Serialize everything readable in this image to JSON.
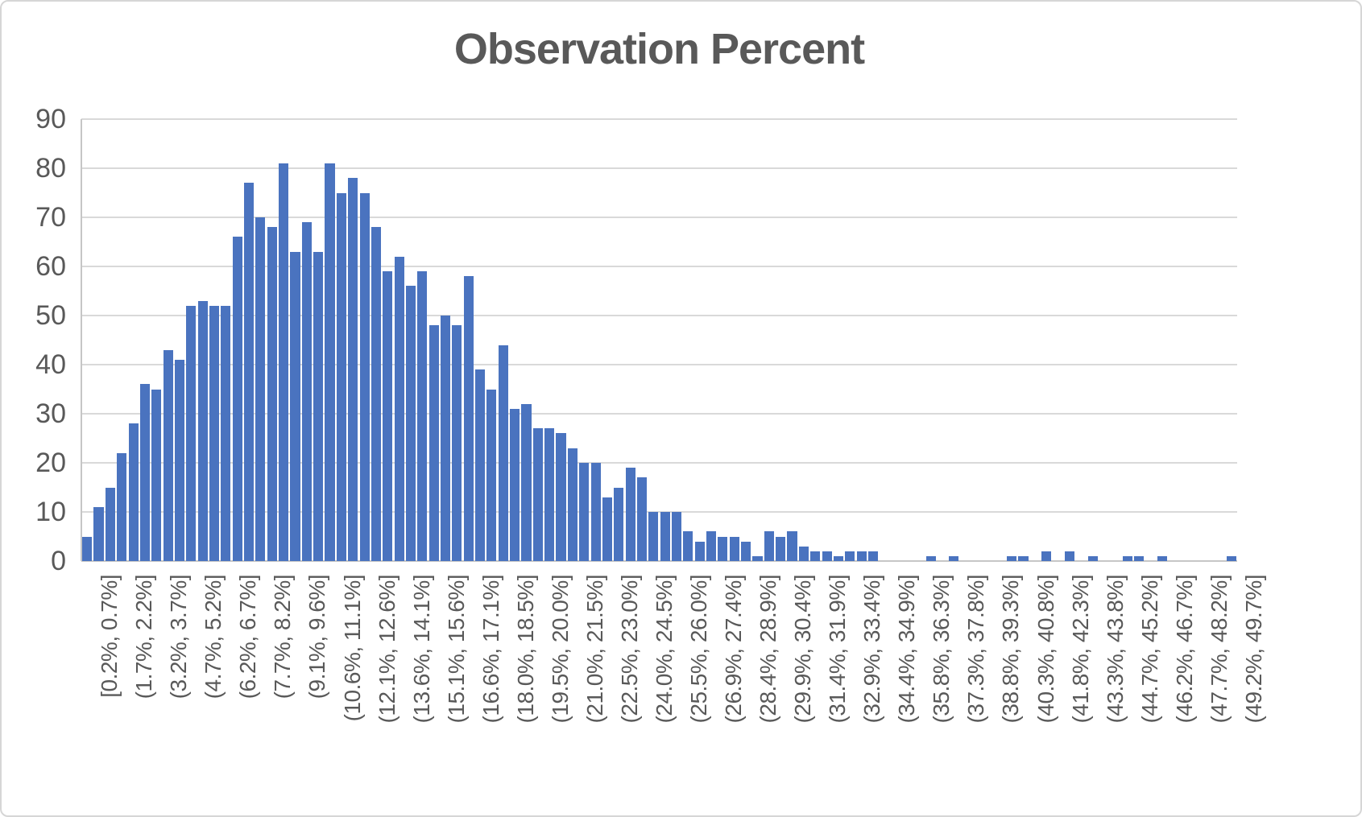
{
  "title": "Observation Percent",
  "colors": {
    "bar": "#4a73bf",
    "gridline": "#d9d9d9",
    "axis_line": "#c6c6c6",
    "text": "#595959",
    "background": "#ffffff"
  },
  "chart_data": {
    "type": "bar",
    "title": "Observation Percent",
    "xlabel": "",
    "ylabel": "",
    "ylim": [
      0,
      90
    ],
    "y_ticks": [
      0,
      10,
      20,
      30,
      40,
      50,
      60,
      70,
      80,
      90
    ],
    "grid": "horizontal",
    "legend": "none",
    "bar_count": 100,
    "x_tick_label_every_n_bars": 3,
    "x_tick_labels": [
      "[0.2%, 0.7%]",
      "(1.7%, 2.2%]",
      "(3.2%, 3.7%]",
      "(4.7%, 5.2%]",
      "(6.2%, 6.7%]",
      "(7.7%, 8.2%]",
      "(9.1%, 9.6%]",
      "(10.6%, 11.1%]",
      "(12.1%, 12.6%]",
      "(13.6%, 14.1%]",
      "(15.1%, 15.6%]",
      "(16.6%, 17.1%]",
      "(18.0%, 18.5%]",
      "(19.5%, 20.0%]",
      "(21.0%, 21.5%]",
      "(22.5%, 23.0%]",
      "(24.0%, 24.5%]",
      "(25.5%, 26.0%]",
      "(26.9%, 27.4%]",
      "(28.4%, 28.9%]",
      "(29.9%, 30.4%]",
      "(31.4%, 31.9%]",
      "(32.9%, 33.4%]",
      "(34.4%, 34.9%]",
      "(35.8%, 36.3%]",
      "(37.3%, 37.8%]",
      "(38.8%, 39.3%]",
      "(40.3%, 40.8%]",
      "(41.8%, 42.3%]",
      "(43.3%, 43.8%]",
      "(44.7%, 45.2%]",
      "(46.2%, 46.7%]",
      "(47.7%, 48.2%]",
      "(49.2%, 49.7%]"
    ],
    "values": [
      5,
      11,
      15,
      22,
      28,
      36,
      35,
      43,
      41,
      52,
      53,
      52,
      52,
      66,
      77,
      70,
      68,
      81,
      63,
      69,
      63,
      81,
      75,
      78,
      75,
      68,
      59,
      62,
      56,
      59,
      48,
      50,
      48,
      58,
      39,
      35,
      44,
      31,
      32,
      27,
      27,
      26,
      23,
      20,
      20,
      13,
      15,
      19,
      17,
      10,
      10,
      10,
      6,
      4,
      6,
      5,
      5,
      4,
      1,
      6,
      5,
      6,
      3,
      2,
      2,
      1,
      2,
      2,
      2,
      0,
      0,
      0,
      0,
      1,
      0,
      1,
      0,
      0,
      0,
      0,
      1,
      1,
      0,
      2,
      0,
      2,
      0,
      1,
      0,
      0,
      1,
      1,
      0,
      1,
      0,
      0,
      0,
      0,
      0,
      1
    ]
  }
}
